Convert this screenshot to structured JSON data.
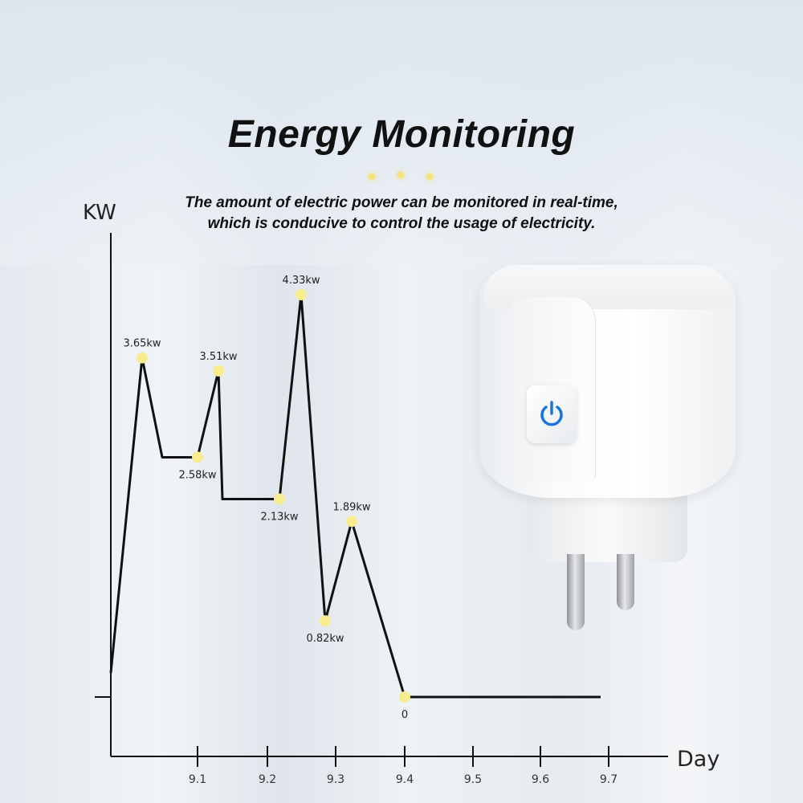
{
  "header": {
    "title": "Energy Monitoring",
    "subtitle_line1": "The amount of electric power can be monitored in real-time,",
    "subtitle_line2": "which is conducive to control the usage of electricity."
  },
  "product": {
    "button_icon": "power-icon",
    "accent_color": "#1a73d9"
  },
  "chart_data": {
    "type": "line",
    "xlabel": "Day",
    "ylabel": "KW",
    "x_ticks": [
      "9.1",
      "9.2",
      "9.3",
      "9.4",
      "9.5",
      "9.6",
      "9.7"
    ],
    "line_color": "#111111",
    "marker_color": "#f7ec8e",
    "points": [
      {
        "value": 3.65,
        "label": "3.65kw",
        "label_pos": "above"
      },
      {
        "value": 2.58,
        "label": "2.58kw",
        "label_pos": "below"
      },
      {
        "value": 3.51,
        "label": "3.51kw",
        "label_pos": "above"
      },
      {
        "value": 2.13,
        "label": "2.13kw",
        "label_pos": "below"
      },
      {
        "value": 4.33,
        "label": "4.33kw",
        "label_pos": "above"
      },
      {
        "value": 0.82,
        "label": "0.82kw",
        "label_pos": "below"
      },
      {
        "value": 1.89,
        "label": "1.89kw",
        "label_pos": "above"
      },
      {
        "value": 0,
        "label": "0",
        "label_pos": "below"
      }
    ],
    "grid": false
  }
}
